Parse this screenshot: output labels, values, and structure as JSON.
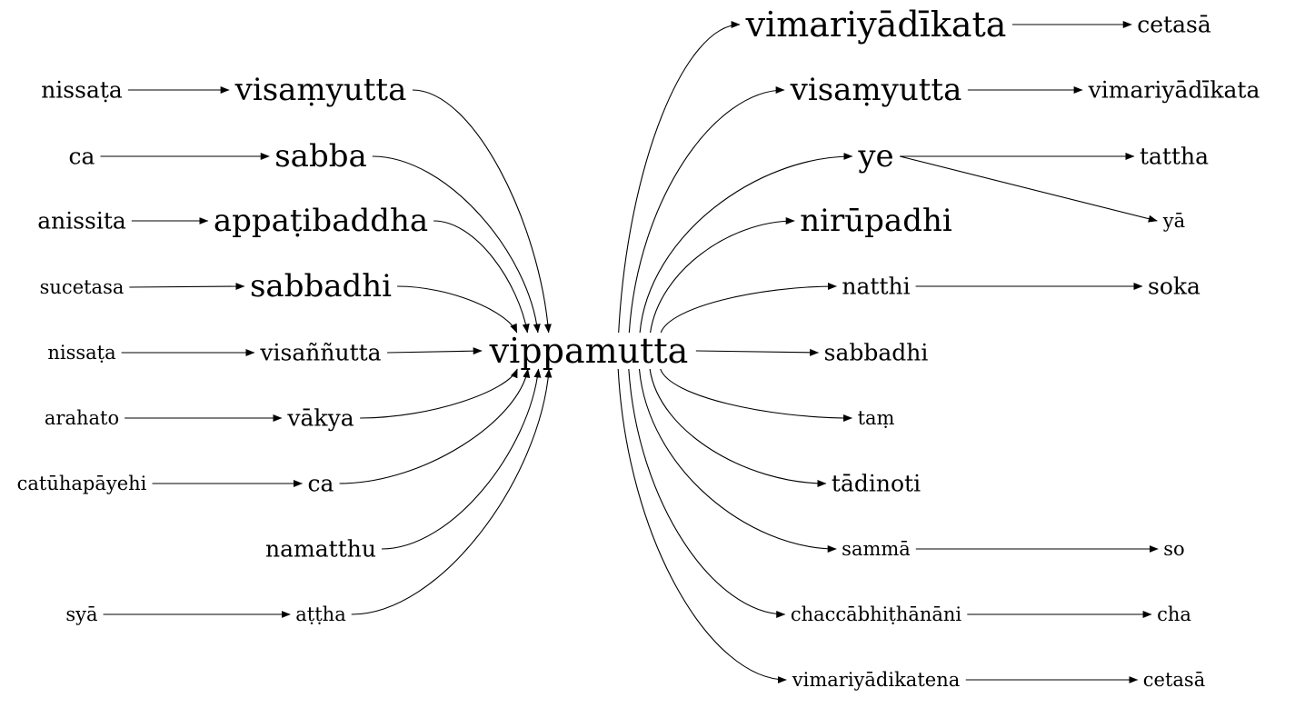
{
  "graph": {
    "nodes": [
      {
        "id": "vippamutta",
        "label": "vippamutta",
        "size": "xl"
      },
      {
        "id": "L_visamyutta",
        "label": "visaṃyutta",
        "size": "lg"
      },
      {
        "id": "L_sabba",
        "label": "sabba",
        "size": "lg"
      },
      {
        "id": "L_appatibaddha",
        "label": "appaṭibaddha",
        "size": "lg"
      },
      {
        "id": "L_sabbadhi",
        "label": "sabbadhi",
        "size": "lg"
      },
      {
        "id": "L_visannutta",
        "label": "visaññutta",
        "size": "md"
      },
      {
        "id": "L_vakya",
        "label": "vākya",
        "size": "md"
      },
      {
        "id": "L_ca",
        "label": "ca",
        "size": "md"
      },
      {
        "id": "L_namatthu",
        "label": "namatthu",
        "size": "md"
      },
      {
        "id": "L_attha",
        "label": "aṭṭha",
        "size": "sm"
      },
      {
        "id": "S_nissata1",
        "label": "nissaṭa",
        "size": "md"
      },
      {
        "id": "S_ca",
        "label": "ca",
        "size": "md"
      },
      {
        "id": "S_anissita",
        "label": "anissita",
        "size": "md"
      },
      {
        "id": "S_sucetasa",
        "label": "sucetasa",
        "size": "sm"
      },
      {
        "id": "S_nissata2",
        "label": "nissaṭa",
        "size": "sm"
      },
      {
        "id": "S_arahato",
        "label": "arahato",
        "size": "sm"
      },
      {
        "id": "S_catuhapayehi",
        "label": "catūhapāyehi",
        "size": "sm"
      },
      {
        "id": "S_sya",
        "label": "syā",
        "size": "sm"
      },
      {
        "id": "R_vimariyadikata",
        "label": "vimariyādīkata",
        "size": "xl"
      },
      {
        "id": "R_visamyutta",
        "label": "visaṃyutta",
        "size": "lg"
      },
      {
        "id": "R_ye",
        "label": "ye",
        "size": "lg"
      },
      {
        "id": "R_nirupadhi",
        "label": "nirūpadhi",
        "size": "lg"
      },
      {
        "id": "R_natthi",
        "label": "natthi",
        "size": "md"
      },
      {
        "id": "R_sabbadhi",
        "label": "sabbadhi",
        "size": "md"
      },
      {
        "id": "R_tam",
        "label": "taṃ",
        "size": "sm"
      },
      {
        "id": "R_tadinoti",
        "label": "tādinoti",
        "size": "md"
      },
      {
        "id": "R_samma",
        "label": "sammā",
        "size": "sm"
      },
      {
        "id": "R_chacca",
        "label": "chaccābhiṭhānāni",
        "size": "sm"
      },
      {
        "id": "R_vimariyadikatena",
        "label": "vimariyādikatena",
        "size": "sm"
      },
      {
        "id": "T_cetasa1",
        "label": "cetasā",
        "size": "md"
      },
      {
        "id": "T_vimariyadikata",
        "label": "vimariyādīkata",
        "size": "md"
      },
      {
        "id": "T_tattha",
        "label": "tattha",
        "size": "md"
      },
      {
        "id": "T_ya",
        "label": "yā",
        "size": "sm"
      },
      {
        "id": "T_soka",
        "label": "soka",
        "size": "md"
      },
      {
        "id": "T_so",
        "label": "so",
        "size": "sm"
      },
      {
        "id": "T_cha",
        "label": "cha",
        "size": "sm"
      },
      {
        "id": "T_cetasa2",
        "label": "cetasā",
        "size": "sm"
      }
    ],
    "edges": [
      {
        "from": "S_nissata1",
        "to": "L_visamyutta"
      },
      {
        "from": "S_ca",
        "to": "L_sabba"
      },
      {
        "from": "S_anissita",
        "to": "L_appatibaddha"
      },
      {
        "from": "S_sucetasa",
        "to": "L_sabbadhi"
      },
      {
        "from": "S_nissata2",
        "to": "L_visannutta"
      },
      {
        "from": "S_arahato",
        "to": "L_vakya"
      },
      {
        "from": "S_catuhapayehi",
        "to": "L_ca"
      },
      {
        "from": "S_sya",
        "to": "L_attha"
      },
      {
        "from": "L_visamyutta",
        "to": "vippamutta"
      },
      {
        "from": "L_sabba",
        "to": "vippamutta"
      },
      {
        "from": "L_appatibaddha",
        "to": "vippamutta"
      },
      {
        "from": "L_sabbadhi",
        "to": "vippamutta"
      },
      {
        "from": "L_visannutta",
        "to": "vippamutta"
      },
      {
        "from": "L_vakya",
        "to": "vippamutta"
      },
      {
        "from": "L_ca",
        "to": "vippamutta"
      },
      {
        "from": "L_namatthu",
        "to": "vippamutta"
      },
      {
        "from": "L_attha",
        "to": "vippamutta"
      },
      {
        "from": "vippamutta",
        "to": "R_vimariyadikata"
      },
      {
        "from": "vippamutta",
        "to": "R_visamyutta"
      },
      {
        "from": "vippamutta",
        "to": "R_ye"
      },
      {
        "from": "vippamutta",
        "to": "R_nirupadhi"
      },
      {
        "from": "vippamutta",
        "to": "R_natthi"
      },
      {
        "from": "vippamutta",
        "to": "R_sabbadhi"
      },
      {
        "from": "vippamutta",
        "to": "R_tam"
      },
      {
        "from": "vippamutta",
        "to": "R_tadinoti"
      },
      {
        "from": "vippamutta",
        "to": "R_samma"
      },
      {
        "from": "vippamutta",
        "to": "R_chacca"
      },
      {
        "from": "vippamutta",
        "to": "R_vimariyadikatena"
      },
      {
        "from": "R_vimariyadikata",
        "to": "T_cetasa1"
      },
      {
        "from": "R_visamyutta",
        "to": "T_vimariyadikata"
      },
      {
        "from": "R_ye",
        "to": "T_tattha"
      },
      {
        "from": "R_ye",
        "to": "T_ya"
      },
      {
        "from": "R_natthi",
        "to": "T_soka"
      },
      {
        "from": "R_samma",
        "to": "T_so"
      },
      {
        "from": "R_chacca",
        "to": "T_cha"
      },
      {
        "from": "R_vimariyadikatena",
        "to": "T_cetasa2"
      }
    ]
  }
}
